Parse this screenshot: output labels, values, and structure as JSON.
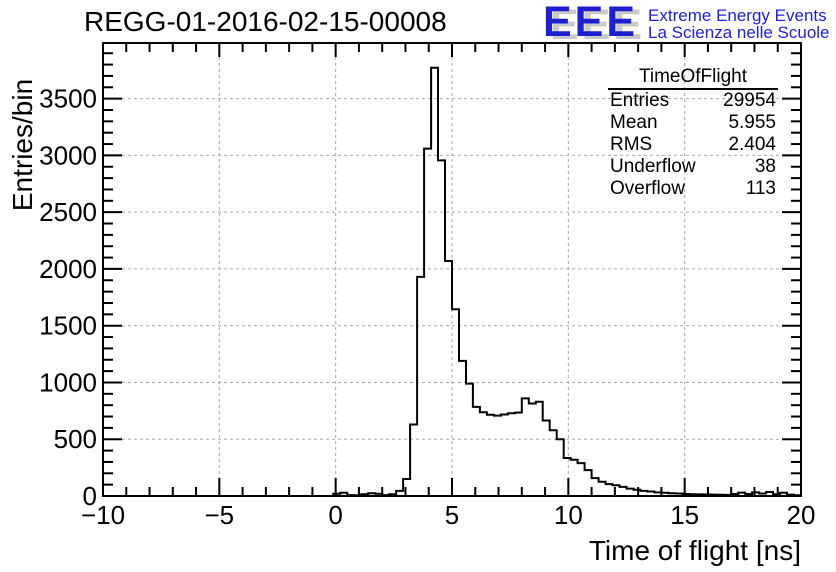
{
  "header": {
    "title": "REGG-01-2016-02-15-00008",
    "logo": {
      "acronym": "EEE",
      "tagline_line1": "Extreme Energy Events",
      "tagline_line2": "La Scienza nelle Scuole",
      "color": "#1f1fd0",
      "shadow_color": "#c9c9c9"
    }
  },
  "stats_box": {
    "title": "TimeOfFlight",
    "rows": [
      {
        "label": "Entries",
        "value": "29954"
      },
      {
        "label": "Mean",
        "value": "5.955"
      },
      {
        "label": "RMS",
        "value": "2.404"
      },
      {
        "label": "Underflow",
        "value": "38"
      },
      {
        "label": "Overflow",
        "value": "113"
      }
    ]
  },
  "chart_data": {
    "type": "bar",
    "style": "step-histogram",
    "title": "REGG-01-2016-02-15-00008",
    "xlabel": "Time of flight [ns]",
    "ylabel": "Entries/bin",
    "xlim": [
      -10,
      20
    ],
    "ylim": [
      0,
      3990
    ],
    "bin_width": 0.3,
    "x_ticks": [
      -10,
      -5,
      0,
      5,
      10,
      15,
      20
    ],
    "x_tick_labels": [
      "−10",
      "−5",
      "0",
      "5",
      "10",
      "15",
      "20"
    ],
    "x_minor_step": 1,
    "y_ticks": [
      0,
      500,
      1000,
      1500,
      2000,
      2500,
      3000,
      3500
    ],
    "y_minor_step": 100,
    "grid": "dashed",
    "grid_color": "#a9a9a9",
    "line_color": "#000000",
    "bins": [
      [
        -0.1,
        20
      ],
      [
        0.2,
        28
      ],
      [
        0.5,
        8
      ],
      [
        0.8,
        5
      ],
      [
        1.1,
        15
      ],
      [
        1.4,
        25
      ],
      [
        1.7,
        20
      ],
      [
        2.0,
        8
      ],
      [
        2.3,
        15
      ],
      [
        2.6,
        45
      ],
      [
        2.9,
        150
      ],
      [
        3.2,
        630
      ],
      [
        3.5,
        1930
      ],
      [
        3.8,
        3060
      ],
      [
        4.1,
        3772
      ],
      [
        4.4,
        2956
      ],
      [
        4.7,
        2070
      ],
      [
        5.0,
        1645
      ],
      [
        5.3,
        1190
      ],
      [
        5.6,
        990
      ],
      [
        5.9,
        785
      ],
      [
        6.2,
        737
      ],
      [
        6.5,
        715
      ],
      [
        6.8,
        708
      ],
      [
        7.1,
        718
      ],
      [
        7.4,
        728
      ],
      [
        7.7,
        735
      ],
      [
        8.0,
        860
      ],
      [
        8.3,
        815
      ],
      [
        8.6,
        830
      ],
      [
        8.9,
        665
      ],
      [
        9.2,
        580
      ],
      [
        9.5,
        500
      ],
      [
        9.8,
        335
      ],
      [
        10.1,
        320
      ],
      [
        10.4,
        290
      ],
      [
        10.7,
        228
      ],
      [
        11.0,
        158
      ],
      [
        11.3,
        125
      ],
      [
        11.6,
        105
      ],
      [
        11.9,
        95
      ],
      [
        12.2,
        80
      ],
      [
        12.5,
        65
      ],
      [
        12.8,
        55
      ],
      [
        13.1,
        45
      ],
      [
        13.4,
        40
      ],
      [
        13.7,
        32
      ],
      [
        14.0,
        28
      ],
      [
        14.3,
        25
      ],
      [
        14.6,
        22
      ],
      [
        14.9,
        18
      ],
      [
        15.2,
        16
      ],
      [
        15.5,
        14
      ],
      [
        15.8,
        13
      ],
      [
        16.1,
        12
      ],
      [
        16.4,
        11
      ],
      [
        16.7,
        10
      ],
      [
        17.0,
        18
      ],
      [
        17.3,
        30
      ],
      [
        17.6,
        18
      ],
      [
        17.9,
        32
      ],
      [
        18.2,
        22
      ],
      [
        18.5,
        35
      ],
      [
        18.8,
        15
      ],
      [
        19.1,
        28
      ],
      [
        19.4,
        12
      ],
      [
        19.7,
        6
      ]
    ]
  }
}
